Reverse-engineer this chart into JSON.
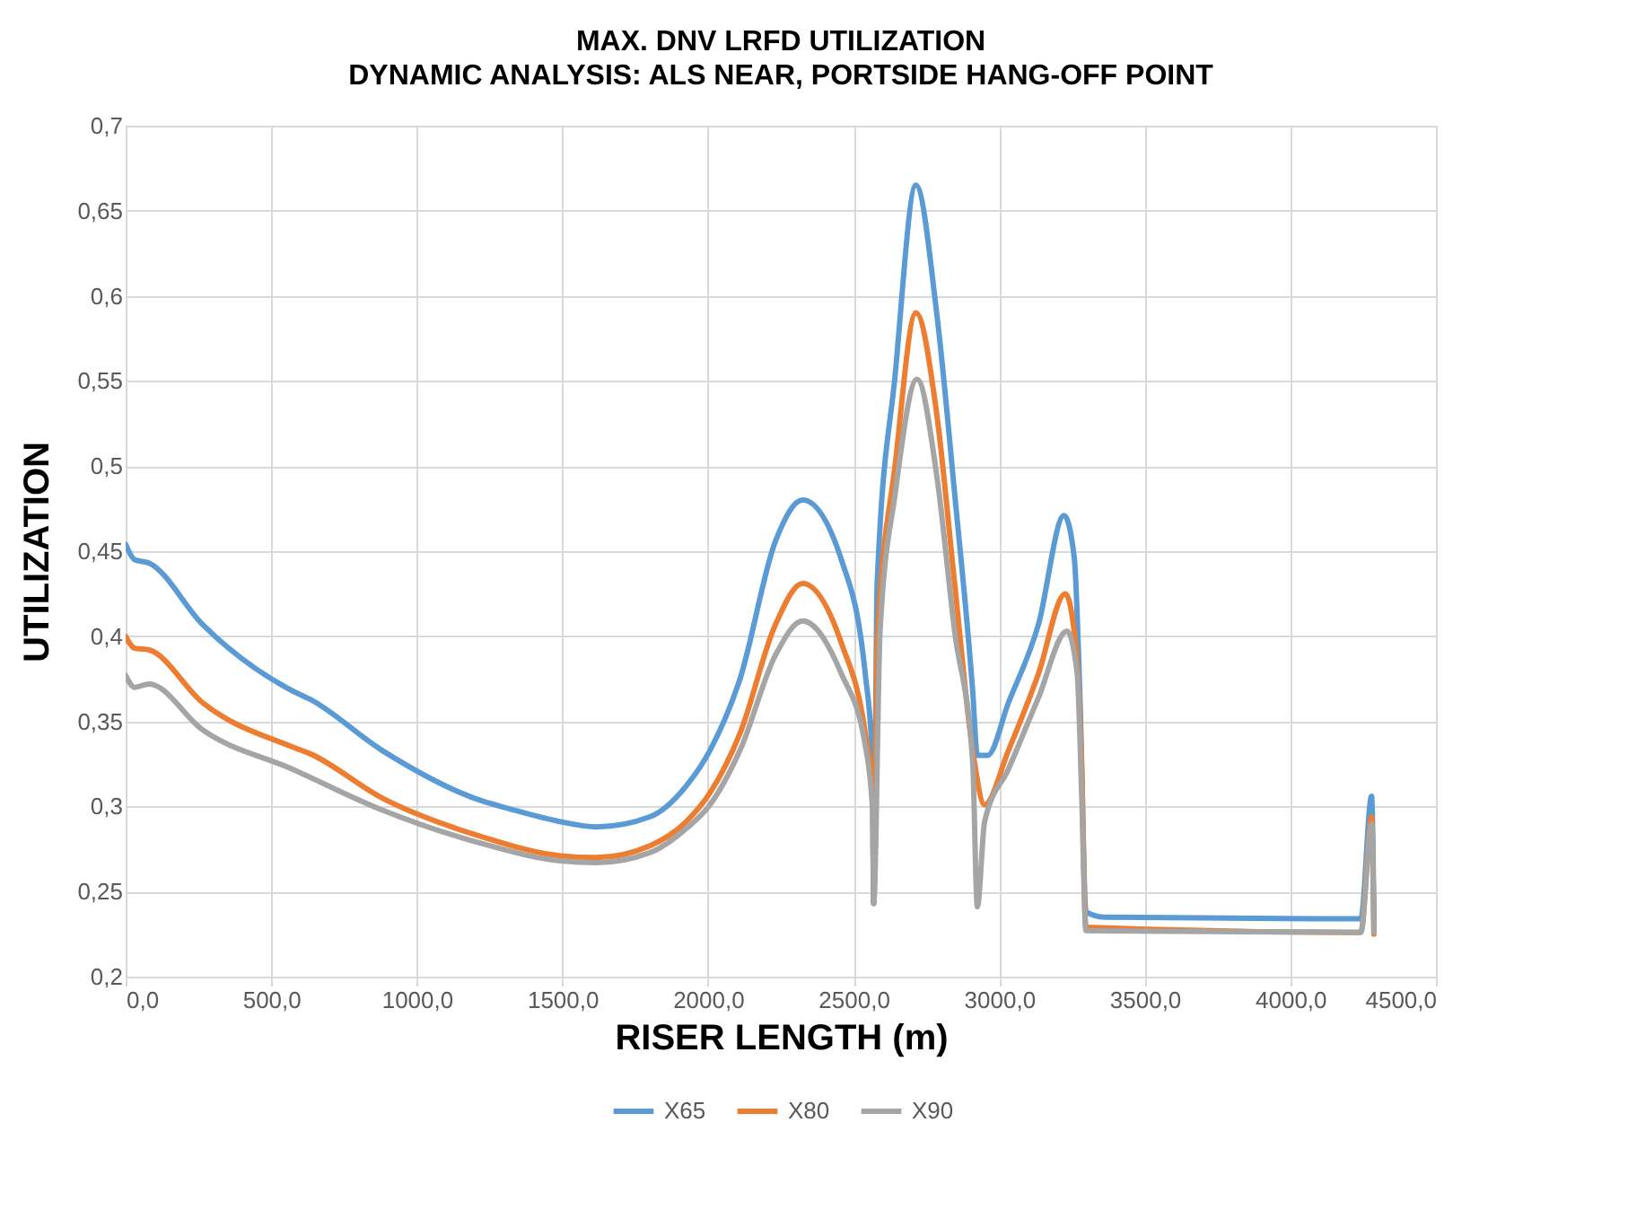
{
  "chart_data": {
    "type": "line",
    "title": "MAX. DNV LRFD UTILIZATION",
    "subtitle": "DYNAMIC ANALYSIS: ALS NEAR, PORTSIDE HANG-OFF POINT",
    "xlabel": "RISER LENGTH (m)",
    "ylabel": "UTILIZATION",
    "xlim": [
      0,
      4500
    ],
    "ylim": [
      0.2,
      0.7
    ],
    "xticks": [
      {
        "value": 0,
        "label": "0,0"
      },
      {
        "value": 500,
        "label": "500,0"
      },
      {
        "value": 1000,
        "label": "1000,0"
      },
      {
        "value": 1500,
        "label": "1500,0"
      },
      {
        "value": 2000,
        "label": "2000,0"
      },
      {
        "value": 2500,
        "label": "2500,0"
      },
      {
        "value": 3000,
        "label": "3000,0"
      },
      {
        "value": 3500,
        "label": "3500,0"
      },
      {
        "value": 4000,
        "label": "4000,0"
      },
      {
        "value": 4500,
        "label": "4500,0"
      }
    ],
    "yticks": [
      {
        "value": 0.2,
        "label": "0,2"
      },
      {
        "value": 0.25,
        "label": "0,25"
      },
      {
        "value": 0.3,
        "label": "0,3"
      },
      {
        "value": 0.35,
        "label": "0,35"
      },
      {
        "value": 0.4,
        "label": "0,4"
      },
      {
        "value": 0.45,
        "label": "0,45"
      },
      {
        "value": 0.5,
        "label": "0,5"
      },
      {
        "value": 0.55,
        "label": "0,55"
      },
      {
        "value": 0.6,
        "label": "0,6"
      },
      {
        "value": 0.65,
        "label": "0,65"
      },
      {
        "value": 0.7,
        "label": "0,7"
      }
    ],
    "grid": true,
    "legend": "bottom",
    "marker": "none",
    "line_style": "solid",
    "series": [
      {
        "name": "X65",
        "color": "#5b9bd5",
        "x": [
          0,
          31,
          80,
          264,
          572,
          633,
          880,
          1228,
          1310,
          1494,
          1617,
          1802,
          1925,
          2007,
          2110,
          2232,
          2325,
          2458,
          2540,
          2565,
          2569,
          2581,
          2643,
          2714,
          2786,
          2847,
          2909,
          2925,
          2960,
          3032,
          3135,
          3223,
          3258,
          3278,
          3298,
          3360,
          4242,
          4279,
          4287
        ],
        "values": [
          0.454,
          0.445,
          0.443,
          0.407,
          0.368,
          0.363,
          0.333,
          0.303,
          0.299,
          0.291,
          0.288,
          0.294,
          0.312,
          0.333,
          0.375,
          0.456,
          0.48,
          0.445,
          0.378,
          0.326,
          0.243,
          0.431,
          0.554,
          0.665,
          0.589,
          0.484,
          0.368,
          0.33,
          0.33,
          0.361,
          0.407,
          0.471,
          0.446,
          0.361,
          0.238,
          0.235,
          0.234,
          0.306,
          0.234
        ]
      },
      {
        "name": "X80",
        "color": "#ed7d31",
        "x": [
          0,
          31,
          80,
          264,
          572,
          633,
          880,
          1228,
          1494,
          1617,
          1802,
          1925,
          2007,
          2110,
          2232,
          2325,
          2458,
          2540,
          2565,
          2569,
          2581,
          2643,
          2714,
          2786,
          2847,
          2909,
          2950,
          3032,
          3135,
          3227,
          3262,
          3283,
          3298,
          4242,
          4279,
          4287
        ],
        "values": [
          0.4,
          0.393,
          0.392,
          0.361,
          0.335,
          0.331,
          0.305,
          0.282,
          0.271,
          0.27,
          0.277,
          0.291,
          0.308,
          0.343,
          0.407,
          0.431,
          0.396,
          0.343,
          0.309,
          0.243,
          0.396,
          0.501,
          0.59,
          0.53,
          0.431,
          0.333,
          0.301,
          0.333,
          0.378,
          0.425,
          0.396,
          0.326,
          0.229,
          0.226,
          0.294,
          0.225
        ]
      },
      {
        "name": "X90",
        "color": "#a5a5a5",
        "x": [
          0,
          31,
          80,
          264,
          572,
          880,
          1228,
          1494,
          1617,
          1802,
          1925,
          2007,
          2110,
          2232,
          2325,
          2458,
          2540,
          2565,
          2569,
          2591,
          2643,
          2718,
          2786,
          2847,
          2909,
          2925,
          2950,
          3032,
          3135,
          3233,
          3268,
          3283,
          3298,
          4242,
          4279,
          4287
        ],
        "values": [
          0.377,
          0.37,
          0.372,
          0.345,
          0.322,
          0.298,
          0.278,
          0.268,
          0.267,
          0.273,
          0.287,
          0.301,
          0.333,
          0.389,
          0.409,
          0.378,
          0.336,
          0.298,
          0.243,
          0.403,
          0.484,
          0.551,
          0.494,
          0.403,
          0.326,
          0.241,
          0.291,
          0.322,
          0.364,
          0.403,
          0.378,
          0.309,
          0.227,
          0.226,
          0.29,
          0.226
        ]
      }
    ]
  }
}
